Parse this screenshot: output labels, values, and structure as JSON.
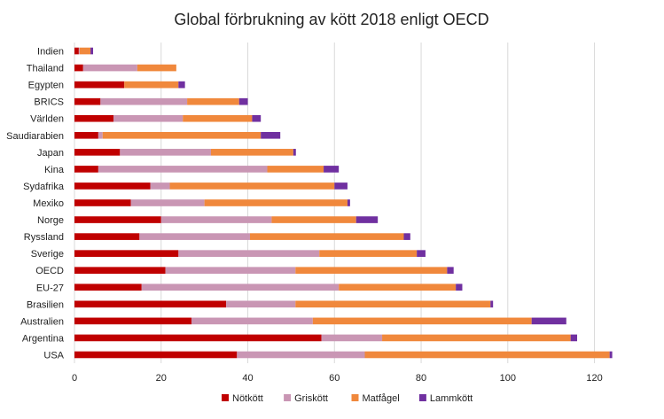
{
  "chart_data": {
    "type": "bar",
    "orientation": "horizontal",
    "stacked": true,
    "title": "Global förbrukning av kött 2018 enligt OECD",
    "xlabel": "",
    "ylabel": "",
    "xlim": [
      0,
      125
    ],
    "xticks": [
      0,
      20,
      40,
      60,
      80,
      100,
      120
    ],
    "grid": "vertical",
    "legend_position": "bottom",
    "categories": [
      "Indien",
      "Thailand",
      "Egypten",
      "BRICS",
      "Världen",
      "Saudiarabien",
      "Japan",
      "Kina",
      "Sydafrika",
      "Mexiko",
      "Norge",
      "Ryssland",
      "Sverige",
      "OECD",
      "EU-27",
      "Brasilien",
      "Australien",
      "Argentina",
      "USA"
    ],
    "series": [
      {
        "name": "Nötkött",
        "color": "#c00000",
        "values": [
          1,
          2,
          11.5,
          6,
          9,
          5.5,
          10.5,
          5.5,
          17.5,
          13,
          20,
          15,
          24,
          21,
          15.5,
          35,
          27,
          57,
          37.5
        ]
      },
      {
        "name": "Griskött",
        "color": "#c996b4",
        "values": [
          0.2,
          12.5,
          0,
          20,
          16,
          1,
          21,
          39,
          4.5,
          17,
          25.5,
          25.5,
          32.5,
          30,
          45.5,
          16,
          28,
          14,
          29.5
        ]
      },
      {
        "name": "Matfågel",
        "color": "#f0883c",
        "values": [
          2.5,
          9,
          12.5,
          12,
          16,
          36.5,
          19,
          13,
          38,
          33,
          19.5,
          35.5,
          22.5,
          35,
          27,
          45,
          50.5,
          43.5,
          56.5
        ]
      },
      {
        "name": "Lammkött",
        "color": "#7030a0",
        "values": [
          0.6,
          0,
          1.5,
          2,
          2,
          4.5,
          0.6,
          3.5,
          3,
          0.6,
          5,
          1.5,
          2,
          1.5,
          1.5,
          0.6,
          8,
          1.5,
          0.6
        ]
      }
    ]
  }
}
